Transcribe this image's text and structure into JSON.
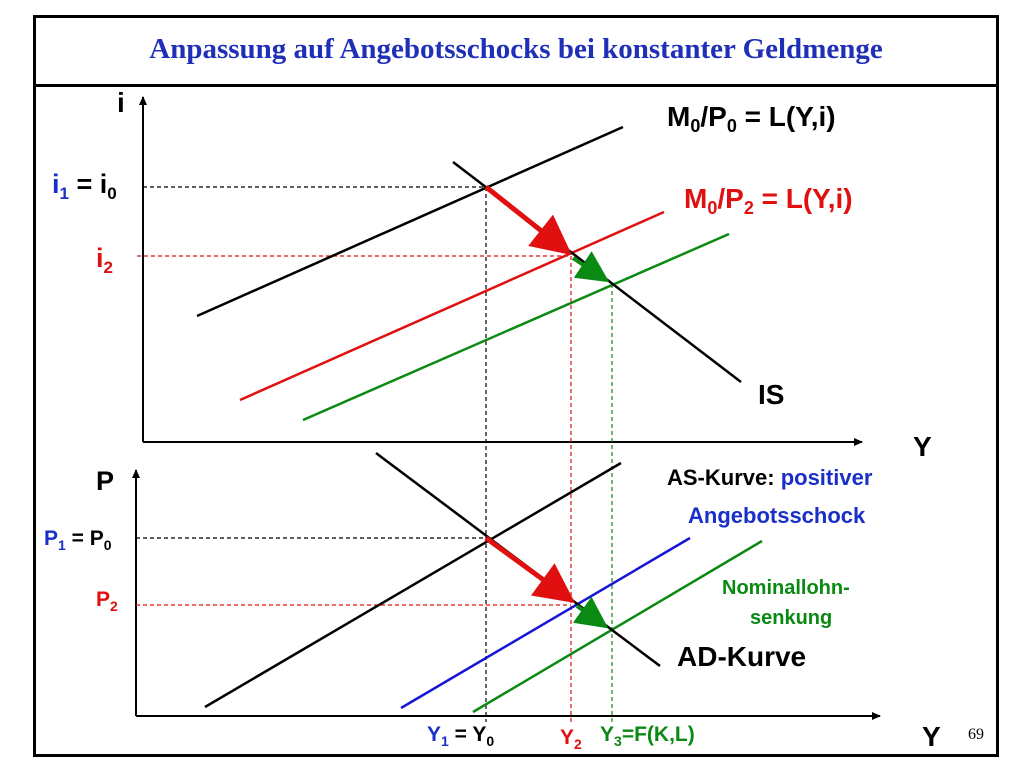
{
  "title": "Anpassung auf Angebotsschocks bei konstanter Geldmenge",
  "page_number": "69",
  "colors": {
    "black": "#000000",
    "red": "#e01010",
    "green": "#0a8a12",
    "blue": "#1515d8",
    "title": "#1f2fb8",
    "label_blue": "#1a2fc8"
  },
  "chart_data": [
    {
      "type": "line",
      "panel": "top",
      "xlabel": "Y",
      "ylabel": "i",
      "series": [
        {
          "name": "M0/P0 = L(Y,i)",
          "color": "#000000"
        },
        {
          "name": "M0/P2 = L(Y,i)",
          "color": "#e01010"
        },
        {
          "name": "",
          "color": "#0a8a12"
        },
        {
          "name": "IS",
          "color": "#000000"
        }
      ],
      "annotations": [
        "i1 = i0",
        "i2"
      ]
    },
    {
      "type": "line",
      "panel": "bottom",
      "xlabel": "Y",
      "ylabel": "P",
      "series": [
        {
          "name": "AS-Kurve: positiver Angebotsschock",
          "color": "#000000"
        },
        {
          "name": "",
          "color": "#1515d8"
        },
        {
          "name": "Nominallohn-senkung",
          "color": "#0a8a12"
        },
        {
          "name": "AD-Kurve",
          "color": "#000000"
        }
      ],
      "annotations": [
        "P1 = P0",
        "P2",
        "Y1 = Y0",
        "Y2",
        "Y3=F(K,L)"
      ]
    }
  ],
  "labels": {
    "top_y_axis": "i",
    "top_x_axis": "Y",
    "bottom_y_axis": "P",
    "bottom_x_axis": "Y",
    "lm0_main": "M",
    "lm0_sub1": "0",
    "lm0_mid": "/P",
    "lm0_sub2": "0",
    "lm0_rest": " = L(Y,i)",
    "lm2_main": "M",
    "lm2_sub1": "0",
    "lm2_mid": "/P",
    "lm2_sub2": "2",
    "lm2_rest": " = L(Y,i)",
    "is": "IS",
    "i1_main": "i",
    "i1_sub": "1",
    "i1_eq": " = i",
    "i1_sub0": "0",
    "i2_main": "i",
    "i2_sub": "2",
    "p1_main": "P",
    "p1_sub": "1",
    "p1_eq": " = P",
    "p1_sub0": "0",
    "p2_main": "P",
    "p2_sub": "2",
    "as_prefix": "AS-Kurve: ",
    "as_positive": "positiver",
    "as_shock": "Angebotsschock",
    "nominal1": "Nominallohn-",
    "nominal2": "senkung",
    "ad": "AD-Kurve",
    "y1_main": "Y",
    "y1_sub": "1",
    "y1_eq": " = Y",
    "y1_sub0": "0",
    "y2_main": "Y",
    "y2_sub": "2",
    "y3_main": "Y",
    "y3_sub": "3",
    "y3_rest": "=F(K,L)"
  }
}
